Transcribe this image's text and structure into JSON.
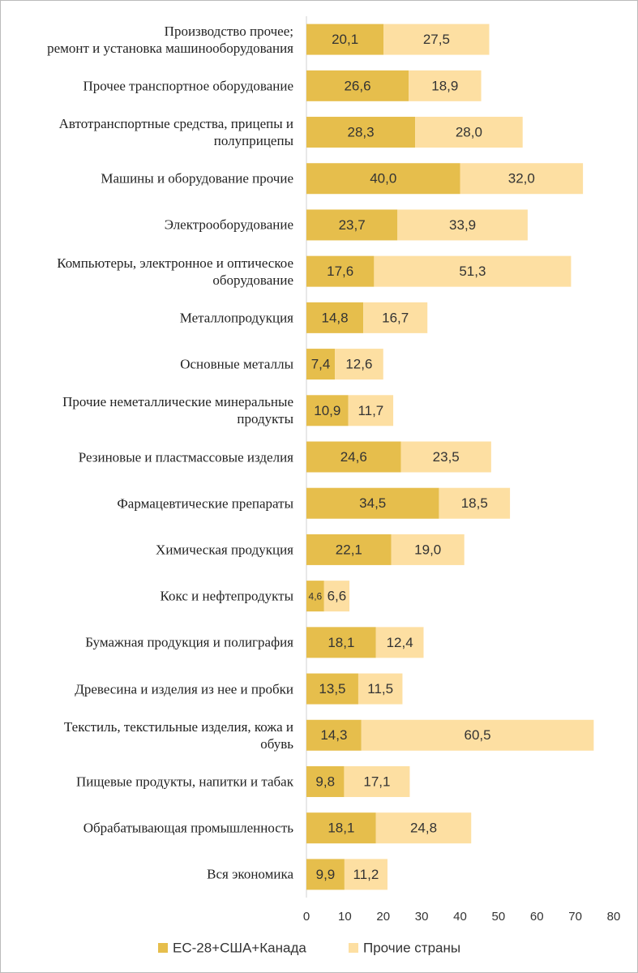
{
  "chart_data": {
    "type": "stacked-bar-horizontal",
    "categories": [
      "Производство прочее;\nремонт и установка машинооборудования",
      "Прочее транспортное оборудование",
      "Автотранспортные средства, прицепы и\nполуприцепы",
      "Машины и оборудование прочие",
      "Электрооборудование",
      "Компьютеры, электронное и оптическое\nоборудование",
      "Металлопродукция",
      "Основные металлы",
      "Прочие неметаллические минеральные\nпродукты",
      "Резиновые и пластмассовые изделия",
      "Фармацевтические препараты",
      "Химическая продукция",
      "Кокс и нефтепродукты",
      "Бумажная продукция и полиграфия",
      "Древесина и изделия из нее и пробки",
      "Текстиль, текстильные изделия, кожа и\nобувь",
      "Пищевые продукты, напитки и табак",
      "Обрабатывающая промышленность",
      "Вся экономика"
    ],
    "series": [
      {
        "name": "ЕС-28+США+Канада",
        "color": "#e6be4c",
        "values": [
          20.1,
          26.6,
          28.3,
          40.0,
          23.7,
          17.6,
          14.8,
          7.4,
          10.9,
          24.6,
          34.5,
          22.1,
          4.6,
          18.1,
          13.5,
          14.3,
          9.8,
          18.1,
          9.9
        ],
        "value_labels": [
          "20,1",
          "26,6",
          "28,3",
          "40,0",
          "23,7",
          "17,6",
          "14,8",
          "7,4",
          "10,9",
          "24,6",
          "34,5",
          "22,1",
          "4,6",
          "18,1",
          "13,5",
          "14,3",
          "9,8",
          "18,1",
          "9,9"
        ]
      },
      {
        "name": "Прочие страны",
        "color": "#fddfa2",
        "values": [
          27.5,
          18.9,
          28.0,
          32.0,
          33.9,
          51.3,
          16.7,
          12.6,
          11.7,
          23.5,
          18.5,
          19.0,
          6.6,
          12.4,
          11.5,
          60.5,
          17.1,
          24.8,
          11.2
        ],
        "value_labels": [
          "27,5",
          "18,9",
          "28,0",
          "32,0",
          "33,9",
          "51,3",
          "16,7",
          "12,6",
          "11,7",
          "23,5",
          "18,5",
          "19,0",
          "6,6",
          "12,4",
          "11,5",
          "60,5",
          "17,1",
          "24,8",
          "11,2"
        ]
      }
    ],
    "xlim": [
      0,
      80
    ],
    "xticks": [
      0,
      10,
      20,
      30,
      40,
      50,
      60,
      70,
      80
    ],
    "grid": false,
    "legend": "bottom"
  }
}
